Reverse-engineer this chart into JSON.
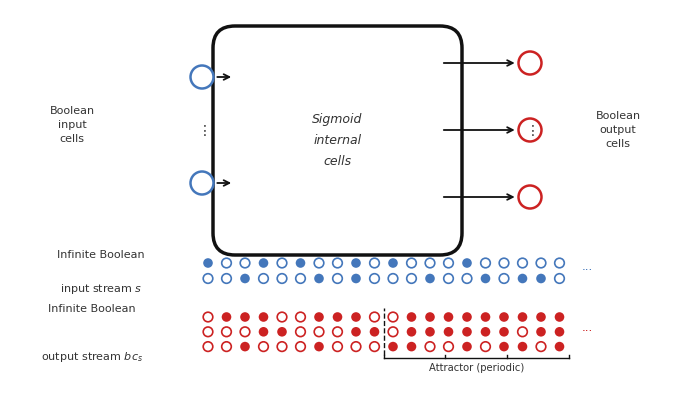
{
  "bg_color": "#ffffff",
  "box_color": "#111111",
  "blue_color": "#4477bb",
  "red_color": "#cc2222",
  "text_color": "#333333",
  "sigmoid_label": "Sigmoid\ninternal\ncells",
  "bool_input_label": "Boolean\ninput\ncells",
  "bool_output_label": "Boolean\noutput\ncells",
  "attractor_label": "Attractor (periodic)",
  "blue_row1": [
    1,
    0,
    0,
    1,
    0,
    1,
    0,
    0,
    1,
    0,
    1,
    0,
    0,
    0,
    1,
    0,
    0,
    0,
    0,
    0
  ],
  "blue_row2": [
    0,
    0,
    1,
    0,
    0,
    0,
    1,
    0,
    1,
    0,
    0,
    0,
    1,
    0,
    0,
    1,
    0,
    1,
    1,
    0
  ],
  "red_row1": [
    0,
    1,
    1,
    1,
    0,
    0,
    1,
    1,
    1,
    0,
    0,
    1,
    1,
    1,
    1,
    1,
    1,
    1,
    1,
    1
  ],
  "red_row2": [
    0,
    0,
    0,
    1,
    1,
    0,
    0,
    0,
    1,
    1,
    0,
    1,
    1,
    1,
    1,
    1,
    1,
    0,
    1,
    1
  ],
  "red_row3": [
    0,
    0,
    1,
    0,
    0,
    0,
    1,
    0,
    0,
    0,
    1,
    1,
    0,
    0,
    1,
    0,
    1,
    1,
    0,
    1
  ],
  "dashed_col": 9.5,
  "figw": 6.84,
  "figh": 4.05
}
